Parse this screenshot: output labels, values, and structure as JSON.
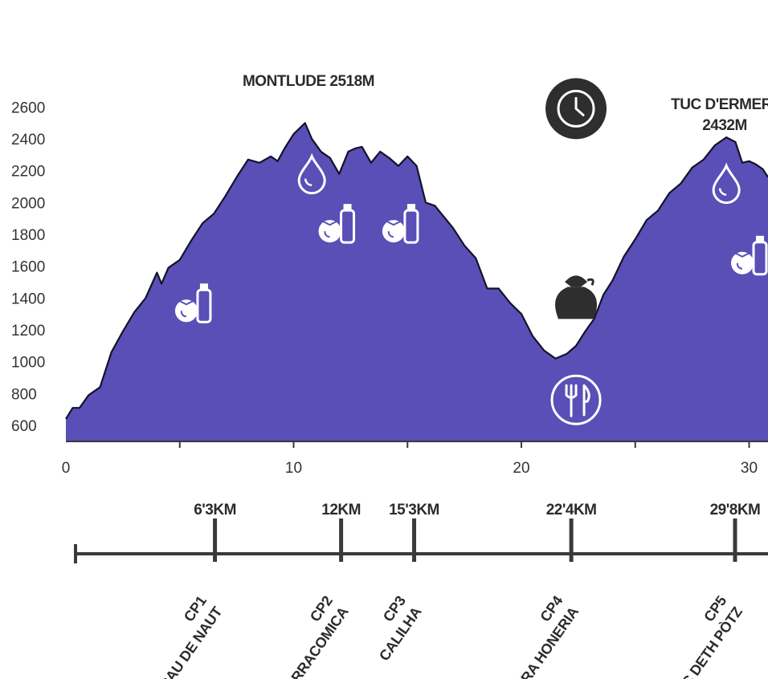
{
  "chart_data": {
    "type": "area",
    "title": "",
    "xlabel": "",
    "ylabel": "",
    "xlim": [
      0,
      31
    ],
    "ylim": [
      500,
      2700
    ],
    "x_ticks": [
      "0",
      "10",
      "20",
      "30"
    ],
    "y_ticks": [
      "600",
      "800",
      "1000",
      "1200",
      "1400",
      "1600",
      "1800",
      "2000",
      "2200",
      "2400",
      "2600"
    ],
    "grid": false,
    "colors": {
      "area": "#5a4fb6",
      "outline": "#14122a",
      "axis": "#3a3a3a",
      "icon": "#2e2e2e"
    },
    "series": [
      {
        "x": [
          0,
          0.3,
          0.6,
          1.0,
          1.5,
          2.0,
          2.5,
          3.0,
          3.5,
          4.0,
          4.2,
          4.5,
          5.0,
          5.5,
          6.0,
          6.5,
          7.0,
          7.5,
          8.0,
          8.5,
          9.0,
          9.3,
          9.6,
          10.0,
          10.5,
          10.8,
          11.2,
          11.6,
          12.0,
          12.4,
          12.7,
          13.0,
          13.4,
          13.8,
          14.2,
          14.6,
          15.0,
          15.4,
          15.8,
          16.2,
          16.6,
          17.0,
          17.5,
          18.0,
          18.5,
          19.0,
          19.5,
          20.0,
          20.5,
          21.0,
          21.5,
          22.0,
          22.4,
          22.8,
          23.2,
          23.6,
          24.0,
          24.5,
          25.0,
          25.5,
          26.0,
          26.5,
          27.0,
          27.5,
          28.0,
          28.5,
          29.0,
          29.4,
          29.7,
          30.0,
          30.3,
          30.6,
          31.0
        ],
        "y": [
          640,
          700,
          720,
          780,
          850,
          1050,
          1200,
          1300,
          1410,
          1550,
          1500,
          1580,
          1650,
          1750,
          1880,
          1920,
          2050,
          2150,
          2280,
          2240,
          2300,
          2250,
          2350,
          2420,
          2510,
          2390,
          2330,
          2270,
          2190,
          2310,
          2350,
          2340,
          2260,
          2310,
          2290,
          2220,
          2300,
          2220,
          2010,
          1970,
          1920,
          1830,
          1740,
          1640,
          1470,
          1450,
          1380,
          1290,
          1170,
          1060,
          1030,
          1040,
          1110,
          1180,
          1280,
          1410,
          1520,
          1650,
          1780,
          1880,
          1960,
          2050,
          2130,
          2210,
          2280,
          2350,
          2420,
          2370,
          2260,
          2250,
          2250,
          2200,
          2160
        ]
      }
    ],
    "annotations": {
      "peaks": [
        {
          "line1": "MONTLUDE 2518M",
          "line2": ""
        },
        {
          "line1": "TUC D'ERMER",
          "line2": "2432M"
        }
      ],
      "icons": [
        {
          "name": "water-drop-icon",
          "x": 10.8,
          "y": 2180
        },
        {
          "name": "water-drop-icon",
          "x": 29.0,
          "y": 2120
        },
        {
          "name": "tomato-bottle-icon",
          "x": 5.5,
          "y": 1340
        },
        {
          "name": "tomato-bottle-icon",
          "x": 11.8,
          "y": 1840
        },
        {
          "name": "tomato-bottle-icon",
          "x": 14.6,
          "y": 1840
        },
        {
          "name": "tomato-bottle-icon",
          "x": 30.2,
          "y": 1640
        },
        {
          "name": "drop-bag-icon",
          "x": 22.4,
          "y": 1400
        },
        {
          "name": "clock-icon",
          "x": 22.4,
          "y": 2590
        },
        {
          "name": "restaurant-icon",
          "x": 22.4,
          "y": 760
        }
      ]
    },
    "checkpoints": [
      {
        "km": 6.3,
        "km_label": "6'3KM",
        "code": "CP1",
        "name": "CAU DE NAUT"
      },
      {
        "km": 12,
        "km_label": "12KM",
        "code": "CP2",
        "name": "BARRACOMICA"
      },
      {
        "km": 15.3,
        "km_label": "15'3KM",
        "code": "CP3",
        "name": "CALILHA"
      },
      {
        "km": 22.4,
        "km_label": "22'4KM",
        "code": "CP4",
        "name": "ERA HONERIA"
      },
      {
        "km": 29.8,
        "km_label": "29'8KM",
        "code": "CP5",
        "name": "LAC DETH PÒTZ"
      }
    ]
  }
}
